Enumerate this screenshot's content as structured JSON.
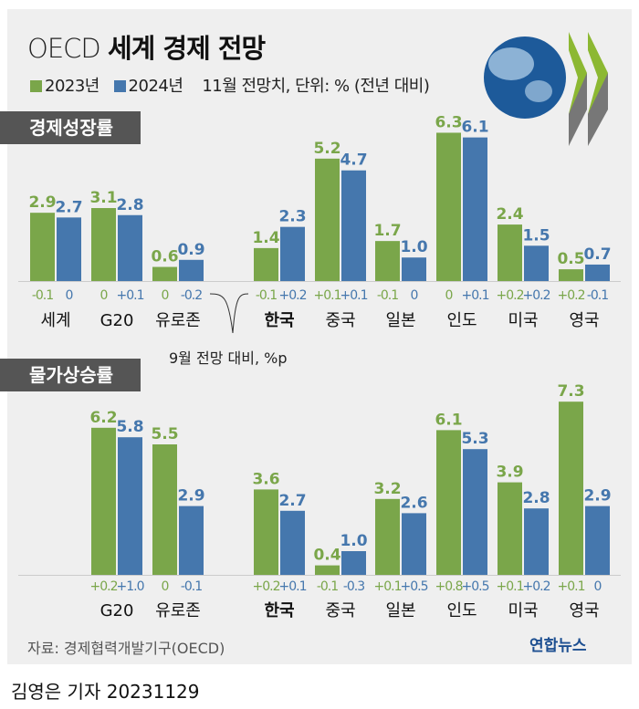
{
  "title": {
    "prefix": "OECD",
    "main": "세계 경제 전망"
  },
  "legend": {
    "y2023": "2023년",
    "y2024": "2024년",
    "note": "11월 전망치, 단위: % (전년 대비)"
  },
  "colors": {
    "y2023": "#7aa64a",
    "y2024": "#4577ad"
  },
  "footnote": "9월 전망 대비, %p",
  "source": "자료: 경제협력개발기구(OECD)",
  "logo": "연합뉴스",
  "byline": "김영은 기자  20231129",
  "chart_data": [
    {
      "type": "bar",
      "title": "경제성장률",
      "series_names": [
        "2023년",
        "2024년"
      ],
      "categories": [
        "세계",
        "G20",
        "유로존",
        "한국",
        "중국",
        "일본",
        "인도",
        "미국",
        "영국"
      ],
      "values_2023": [
        2.9,
        3.1,
        0.6,
        1.4,
        5.2,
        1.7,
        6.3,
        2.4,
        0.5
      ],
      "values_2024": [
        2.7,
        2.8,
        0.9,
        2.3,
        4.7,
        1.0,
        6.1,
        1.5,
        0.7
      ],
      "change_2023": [
        "-0.1",
        "0",
        "0",
        "-0.1",
        "+0.1",
        "-0.1",
        "0",
        "+0.2",
        "+0.2"
      ],
      "change_2024": [
        "0",
        "+0.1",
        "-0.2",
        "+0.2",
        "+0.1",
        "0",
        "+0.1",
        "+0.2",
        "-0.1"
      ]
    },
    {
      "type": "bar",
      "title": "물가상승률",
      "series_names": [
        "2023년",
        "2024년"
      ],
      "categories": [
        "G20",
        "유로존",
        "한국",
        "중국",
        "일본",
        "인도",
        "미국",
        "영국"
      ],
      "values_2023": [
        6.2,
        5.5,
        3.6,
        0.4,
        3.2,
        6.1,
        3.9,
        7.3
      ],
      "values_2024": [
        5.8,
        2.9,
        2.7,
        1.0,
        2.6,
        5.3,
        2.8,
        2.9
      ],
      "change_2023": [
        "+0.2",
        "0",
        "+0.2",
        "-0.1",
        "+0.1",
        "+0.8",
        "+0.1",
        "+0.1"
      ],
      "change_2024": [
        "+1.0",
        "-0.1",
        "+0.1",
        "-0.3",
        "+0.5",
        "+0.5",
        "+0.2",
        "0"
      ]
    }
  ]
}
